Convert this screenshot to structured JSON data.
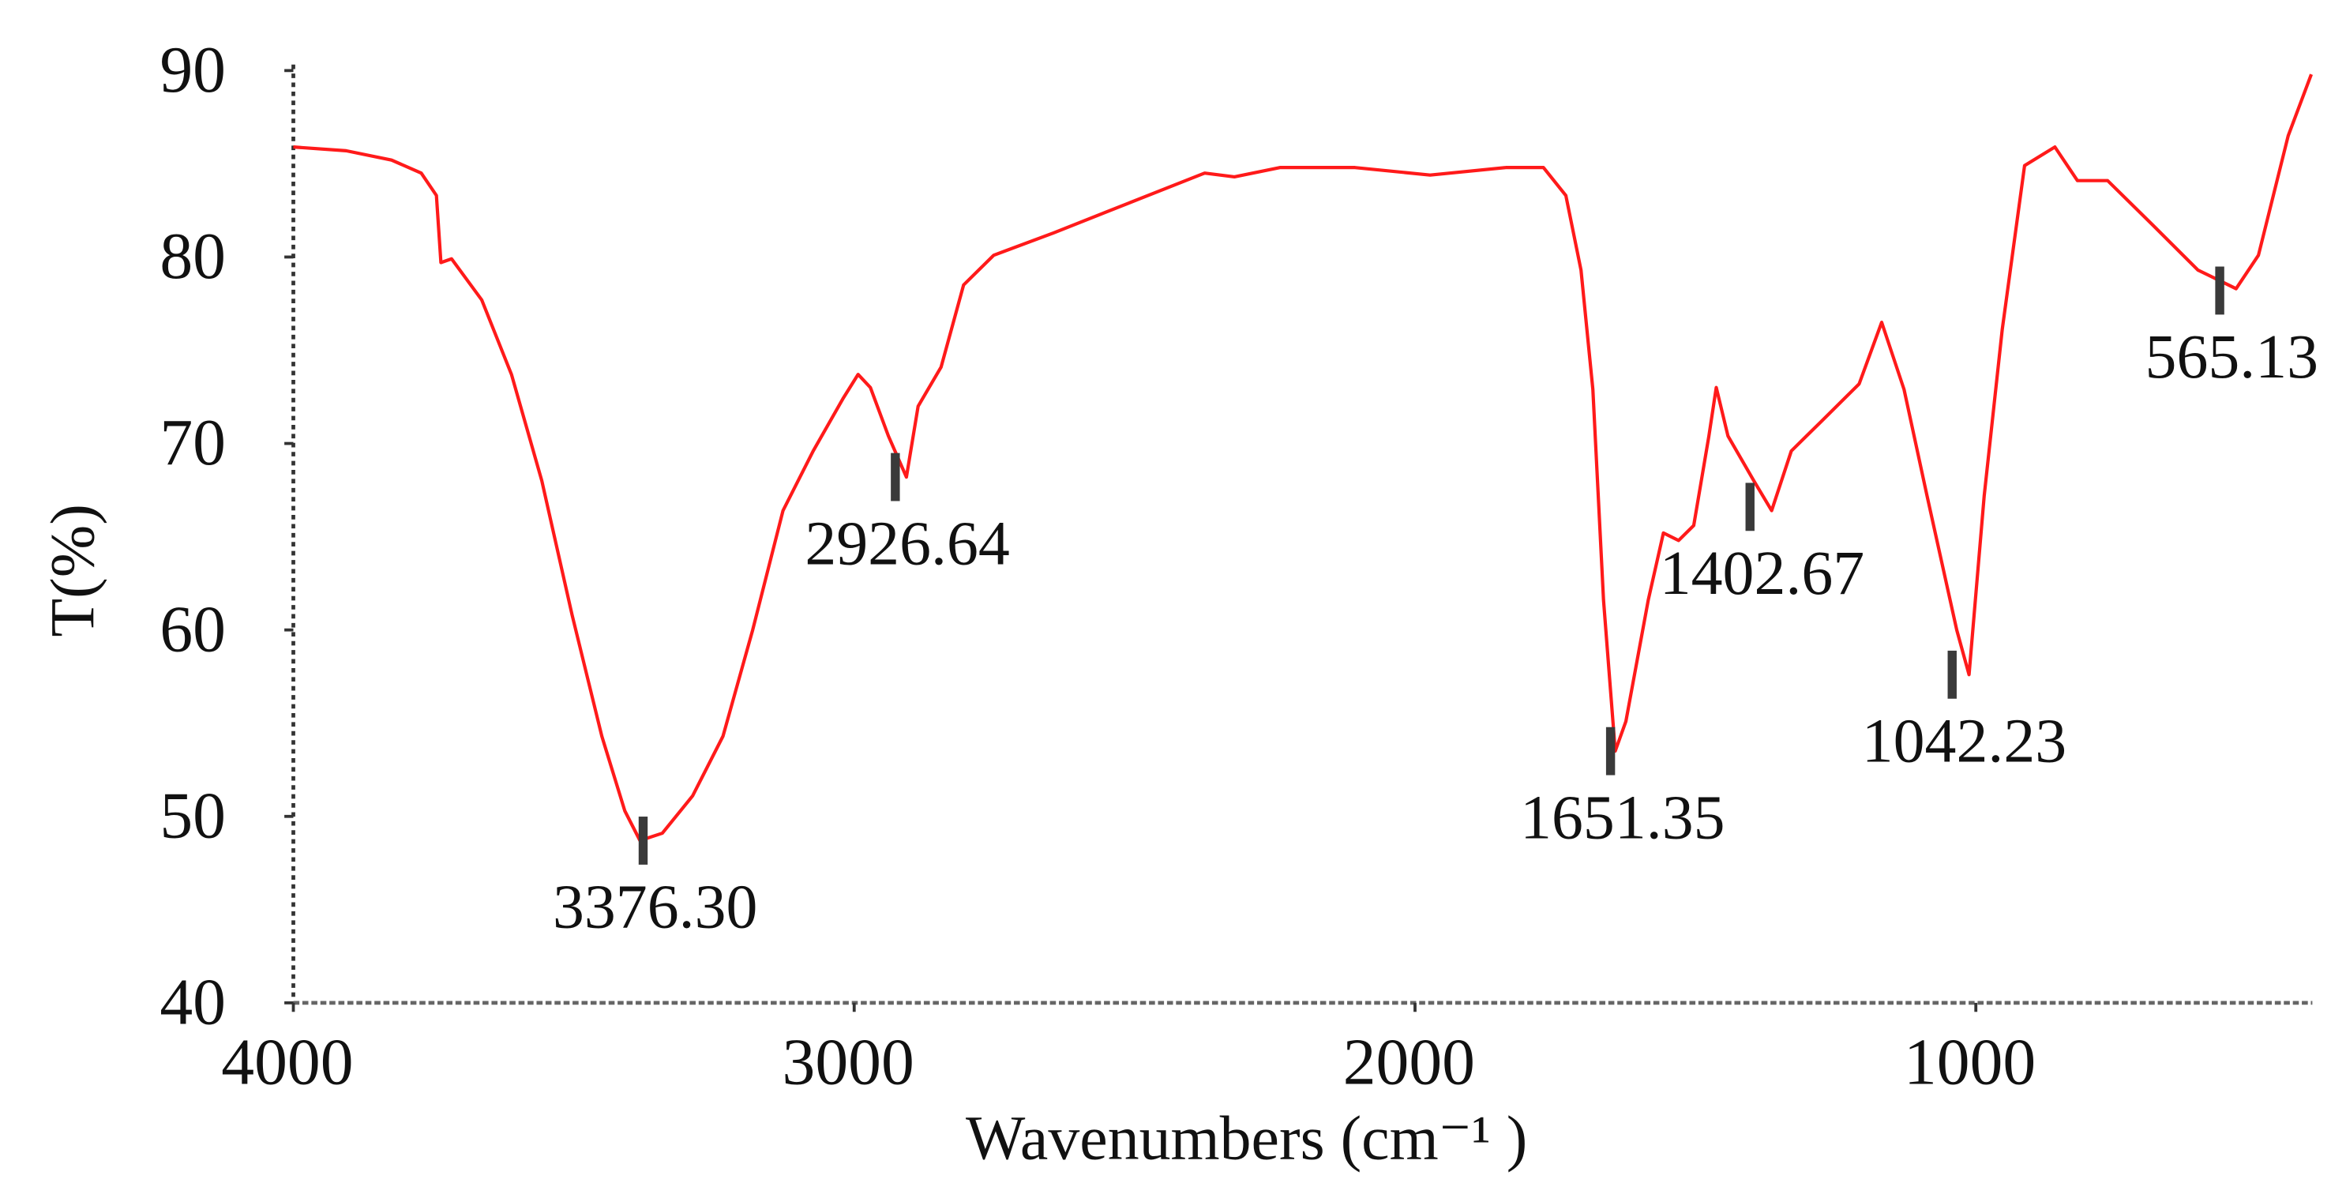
{
  "chart_data": {
    "type": "line",
    "x_label": "Wavenumbers (cm⁻¹ )",
    "y_label": "T(%)",
    "xlim": [
      4000,
      400
    ],
    "ylim": [
      40,
      90
    ],
    "xticks": [
      4000,
      3000,
      2000,
      1000
    ],
    "yticks": [
      40,
      50,
      60,
      70,
      80,
      90
    ],
    "x": [
      4000,
      3906,
      3825,
      3772,
      3745,
      3737,
      3718,
      3664,
      3611,
      3557,
      3503,
      3450,
      3409,
      3382,
      3342,
      3288,
      3234,
      3181,
      3127,
      3073,
      3020,
      2993,
      2971,
      2939,
      2907,
      2886,
      2845,
      2805,
      2751,
      2644,
      2510,
      2375,
      2322,
      2241,
      2107,
      1973,
      1838,
      1771,
      1731,
      1704,
      1683,
      1664,
      1643,
      1624,
      1584,
      1557,
      1530,
      1503,
      1476,
      1463,
      1442,
      1396,
      1364,
      1329,
      1275,
      1208,
      1168,
      1128,
      1087,
      1034,
      1012,
      985,
      953,
      913,
      859,
      819,
      765,
      684,
      604,
      536,
      496,
      443,
      402
    ],
    "series": [
      {
        "color": "#ff1a1a",
        "values": [
          85.9,
          85.7,
          85.2,
          84.5,
          83.3,
          79.7,
          79.9,
          77.7,
          73.7,
          68.0,
          60.8,
          54.3,
          50.3,
          48.7,
          49.1,
          51.1,
          54.3,
          60.0,
          66.4,
          69.6,
          72.4,
          73.7,
          73.0,
          70.4,
          68.2,
          72.0,
          74.1,
          78.5,
          80.1,
          81.3,
          82.9,
          84.5,
          84.3,
          84.8,
          84.8,
          84.4,
          84.8,
          84.8,
          83.3,
          79.3,
          72.9,
          61.6,
          53.5,
          55.1,
          61.6,
          65.2,
          64.8,
          65.6,
          70.4,
          73.0,
          70.4,
          68.0,
          66.4,
          69.6,
          71.2,
          73.2,
          76.5,
          72.9,
          67.2,
          60.0,
          57.6,
          67.2,
          76.1,
          84.9,
          85.9,
          84.1,
          84.1,
          81.7,
          79.3,
          78.3,
          80.1,
          86.5,
          89.8
        ]
      }
    ],
    "annotations": [
      {
        "text": "3376.30",
        "x": 3376.3,
        "y": 48.7
      },
      {
        "text": "2926.64",
        "x": 2926.64,
        "y": 68.2
      },
      {
        "text": "1651.35",
        "x": 1651.35,
        "y": 53.5
      },
      {
        "text": "1402.67",
        "x": 1402.67,
        "y": 66.6
      },
      {
        "text": "1042.23",
        "x": 1042.23,
        "y": 57.6
      },
      {
        "text": "565.13",
        "x": 565.13,
        "y": 78.2
      }
    ]
  }
}
